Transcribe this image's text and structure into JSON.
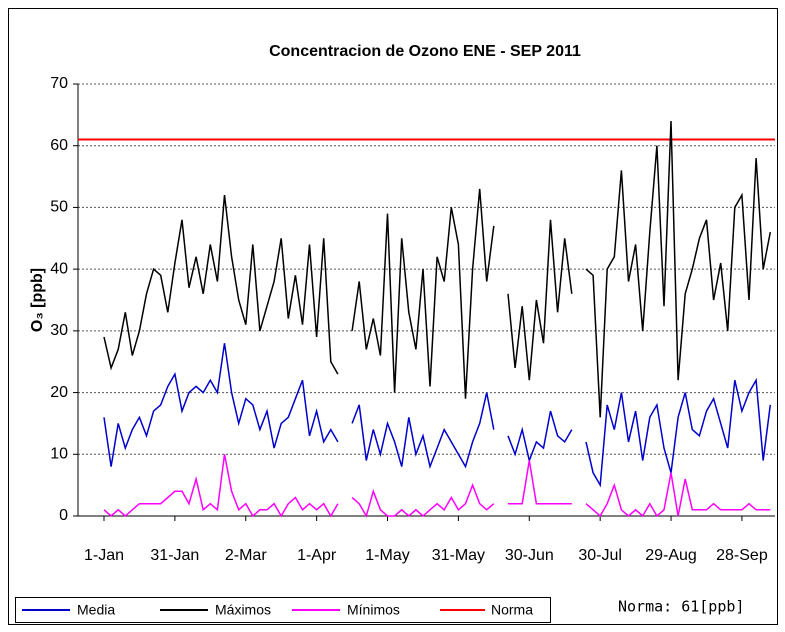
{
  "chart_data": {
    "type": "line",
    "title": "Concentracion de Ozono  ENE - SEP 2011",
    "y_label": "O₃ [ppb]",
    "x": [
      0,
      3,
      6,
      9,
      12,
      15,
      18,
      21,
      24,
      27,
      30,
      33,
      36,
      39,
      42,
      45,
      48,
      51,
      54,
      57,
      60,
      63,
      66,
      69,
      72,
      75,
      78,
      81,
      84,
      87,
      90,
      93,
      96,
      99,
      102,
      105,
      108,
      111,
      114,
      117,
      120,
      123,
      126,
      129,
      132,
      135,
      138,
      141,
      144,
      147,
      150,
      153,
      156,
      159,
      162,
      165,
      168,
      171,
      174,
      177,
      180,
      183,
      186,
      189,
      192,
      195,
      198,
      201,
      204,
      207,
      210,
      213,
      216,
      219,
      222,
      225,
      228,
      231,
      234,
      237,
      240,
      243,
      246,
      249,
      252,
      255,
      258,
      261,
      264,
      267,
      270,
      273,
      276,
      279,
      282
    ],
    "xlim": [
      -11,
      284
    ],
    "xticks": [
      {
        "value": 0,
        "label": "1-Jan"
      },
      {
        "value": 30,
        "label": "31-Jan"
      },
      {
        "value": 60,
        "label": "2-Mar"
      },
      {
        "value": 90,
        "label": "1-Apr"
      },
      {
        "value": 120,
        "label": "1-May"
      },
      {
        "value": 150,
        "label": "31-May"
      },
      {
        "value": 180,
        "label": "30-Jun"
      },
      {
        "value": 210,
        "label": "30-Jul"
      },
      {
        "value": 240,
        "label": "29-Aug"
      },
      {
        "value": 270,
        "label": "28-Sep"
      }
    ],
    "ylim": [
      0,
      70
    ],
    "yticks": [
      0,
      10,
      20,
      30,
      40,
      50,
      60,
      70
    ],
    "grid": true,
    "series": [
      {
        "name": "Media",
        "color": "#0000cc",
        "values": [
          16,
          8,
          15,
          11,
          14,
          16,
          13,
          17,
          18,
          21,
          23,
          17,
          20,
          21,
          20,
          22,
          20,
          28,
          20,
          15,
          19,
          18,
          14,
          17,
          11,
          15,
          16,
          19,
          22,
          13,
          17,
          12,
          14,
          12,
          null,
          15,
          18,
          9,
          14,
          10,
          15,
          12,
          8,
          16,
          10,
          13,
          8,
          11,
          14,
          12,
          10,
          8,
          12,
          15,
          20,
          14,
          null,
          13,
          10,
          14,
          9,
          12,
          11,
          17,
          13,
          12,
          14,
          null,
          12,
          7,
          5,
          18,
          14,
          20,
          12,
          17,
          9,
          16,
          18,
          11,
          7,
          16,
          20,
          14,
          13,
          17,
          19,
          15,
          11,
          22,
          17,
          20,
          22,
          9,
          18
        ]
      },
      {
        "name": "Máximos",
        "color": "#000000",
        "values": [
          29,
          24,
          27,
          33,
          26,
          30,
          36,
          40,
          39,
          33,
          41,
          48,
          37,
          42,
          36,
          44,
          38,
          52,
          42,
          35,
          31,
          44,
          30,
          34,
          38,
          45,
          32,
          39,
          31,
          44,
          29,
          45,
          25,
          23,
          null,
          30,
          38,
          27,
          32,
          26,
          49,
          20,
          45,
          33,
          27,
          40,
          21,
          42,
          38,
          50,
          44,
          19,
          40,
          53,
          38,
          47,
          null,
          36,
          24,
          34,
          22,
          35,
          28,
          48,
          33,
          45,
          36,
          null,
          40,
          39,
          16,
          40,
          42,
          56,
          38,
          44,
          30,
          46,
          60,
          34,
          64,
          22,
          36,
          40,
          45,
          48,
          35,
          41,
          30,
          50,
          52,
          35,
          58,
          40,
          46
        ]
      },
      {
        "name": "Mínimos",
        "color": "#ff00ff",
        "values": [
          1,
          0,
          1,
          0,
          1,
          2,
          2,
          2,
          2,
          3,
          4,
          4,
          2,
          6,
          1,
          2,
          1,
          10,
          4,
          1,
          2,
          0,
          1,
          1,
          2,
          0,
          2,
          3,
          1,
          2,
          1,
          2,
          0,
          2,
          null,
          3,
          2,
          0,
          4,
          1,
          0,
          0,
          1,
          0,
          1,
          0,
          1,
          2,
          1,
          3,
          1,
          2,
          5,
          2,
          1,
          2,
          null,
          2,
          2,
          2,
          9,
          2,
          2,
          2,
          2,
          2,
          2,
          null,
          2,
          1,
          0,
          2,
          5,
          1,
          0,
          1,
          0,
          2,
          0,
          1,
          7,
          0,
          6,
          1,
          1,
          1,
          2,
          1,
          1,
          1,
          1,
          2,
          1,
          1,
          1
        ]
      }
    ],
    "reference_line": {
      "name": "Norma",
      "value": 61,
      "color": "#ff0000"
    },
    "annotation": "Norma: 61[ppb]"
  }
}
